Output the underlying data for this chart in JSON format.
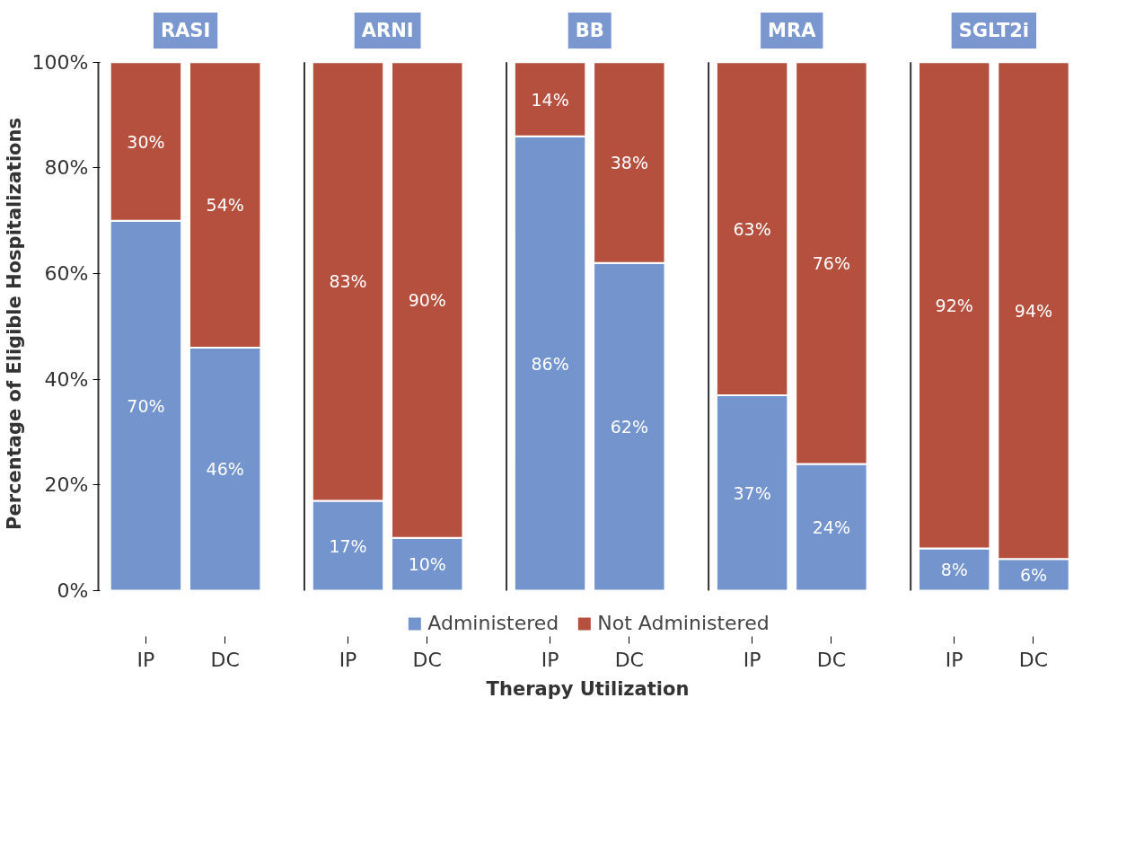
{
  "chart_data": [
    {
      "type": "bar",
      "stacked": true,
      "title": "RASI",
      "ylabel": "Percentage of Eligible Hospitalizations",
      "legend": "bottom",
      "categories": [
        "IP",
        "DC"
      ],
      "ylim": [
        0,
        100
      ],
      "yticks": [
        {
          "value": 0,
          "label": "0%"
        },
        {
          "value": 20,
          "label": "20%"
        },
        {
          "value": 40,
          "label": "40%"
        },
        {
          "value": 60,
          "label": "60%"
        },
        {
          "value": 80,
          "label": "80%"
        },
        {
          "value": 100,
          "label": "100%"
        }
      ],
      "series": [
        {
          "name": "Administered",
          "color": "#7394cc",
          "values": [
            70,
            46
          ],
          "value_labels": [
            "70%",
            "46%"
          ]
        },
        {
          "name": "Not Administered",
          "color": "#b5503e",
          "values": [
            30,
            54
          ],
          "value_labels": [
            "30%",
            "54%"
          ]
        }
      ]
    },
    {
      "type": "bar",
      "stacked": true,
      "title": "ARNI",
      "categories": [
        "IP",
        "DC"
      ],
      "ylim": [
        0,
        100
      ],
      "tick_labels": "x",
      "series": [
        {
          "name": "Administered",
          "color": "#7394cc",
          "values": [
            17,
            10
          ],
          "value_labels": [
            "17%",
            "10%"
          ]
        },
        {
          "name": "Not Administered",
          "color": "#b5503e",
          "values": [
            83,
            90
          ],
          "value_labels": [
            "83%",
            "90%"
          ]
        }
      ]
    },
    {
      "type": "bar",
      "stacked": true,
      "title": "BB",
      "xlabel": "Therapy Utilization",
      "categories": [
        "IP",
        "DC"
      ],
      "ylim": [
        0,
        100
      ],
      "tick_labels": "x",
      "series": [
        {
          "name": "Administered",
          "color": "#7394cc",
          "values": [
            86,
            62
          ],
          "value_labels": [
            "86%",
            "62%"
          ]
        },
        {
          "name": "Not Administered",
          "color": "#b5503e",
          "values": [
            14,
            38
          ],
          "value_labels": [
            "14%",
            "38%"
          ]
        }
      ]
    },
    {
      "type": "bar",
      "stacked": true,
      "title": "MRA",
      "categories": [
        "IP",
        "DC"
      ],
      "ylim": [
        0,
        100
      ],
      "tick_labels": "x",
      "series": [
        {
          "name": "Administered",
          "color": "#7394cc",
          "values": [
            37,
            24
          ],
          "value_labels": [
            "37%",
            "24%"
          ]
        },
        {
          "name": "Not Administered",
          "color": "#b5503e",
          "values": [
            63,
            76
          ],
          "value_labels": [
            "63%",
            "76%"
          ]
        }
      ]
    },
    {
      "type": "bar",
      "stacked": true,
      "title": "SGLT2i",
      "categories": [
        "IP",
        "DC"
      ],
      "ylim": [
        0,
        100
      ],
      "tick_labels": "x",
      "series": [
        {
          "name": "Administered",
          "color": "#7394cc",
          "values": [
            8,
            6
          ],
          "value_labels": [
            "8%",
            "6%"
          ]
        },
        {
          "name": "Not Administered",
          "color": "#b5503e",
          "values": [
            92,
            94
          ],
          "value_labels": [
            "92%",
            "94%"
          ]
        }
      ]
    }
  ]
}
